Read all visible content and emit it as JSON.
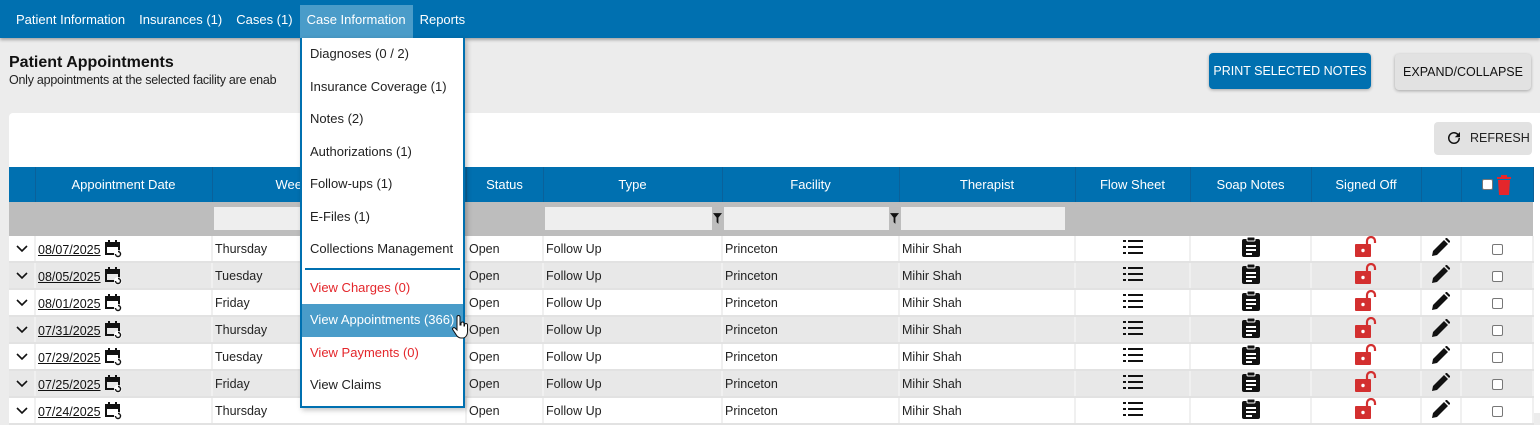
{
  "nav": {
    "items": [
      "Patient Information",
      "Insurances (1)",
      "Cases (1)",
      "Case Information",
      "Reports"
    ],
    "active": "Case Information"
  },
  "page": {
    "title": "Patient Appointments",
    "subtitle": "Only appointments at the selected facility are enab"
  },
  "buttons": {
    "print": "PRINT SELECTED NOTES",
    "expand": "EXPAND/COLLAPSE",
    "refresh": "REFRESH"
  },
  "menu": {
    "items": [
      {
        "label": "Diagnoses (0 / 2)"
      },
      {
        "label": "Insurance Coverage (1)"
      },
      {
        "label": "Notes (2)"
      },
      {
        "label": "Authorizations (1)"
      },
      {
        "label": "Follow-ups (1)"
      },
      {
        "label": "E-Files (1)"
      },
      {
        "label": "Collections Management"
      },
      {
        "label": "View Charges (0)",
        "color": "red"
      },
      {
        "label": "View Appointments (366)",
        "selected": true
      },
      {
        "label": "View Payments (0)",
        "color": "red"
      },
      {
        "label": "View Claims"
      }
    ]
  },
  "table": {
    "columns": [
      "",
      "Appointment Date",
      "Wee",
      "Status",
      "Type",
      "Facility",
      "Therapist",
      "Flow Sheet",
      "Soap Notes",
      "Signed Off",
      "",
      ""
    ],
    "rows": [
      {
        "date": "08/07/2025",
        "weekday": "Thursday",
        "status": "Open",
        "type": "Follow Up",
        "facility": "Princeton",
        "therapist": "Mihir Shah"
      },
      {
        "date": "08/05/2025",
        "weekday": "Tuesday",
        "status": "Open",
        "type": "Follow Up",
        "facility": "Princeton",
        "therapist": "Mihir Shah"
      },
      {
        "date": "08/01/2025",
        "weekday": "Friday",
        "status": "Open",
        "type": "Follow Up",
        "facility": "Princeton",
        "therapist": "Mihir Shah"
      },
      {
        "date": "07/31/2025",
        "weekday": "Thursday",
        "status": "Open",
        "type": "Follow Up",
        "facility": "Princeton",
        "therapist": "Mihir Shah"
      },
      {
        "date": "07/29/2025",
        "weekday": "Tuesday",
        "status": "Open",
        "type": "Follow Up",
        "facility": "Princeton",
        "therapist": "Mihir Shah"
      },
      {
        "date": "07/25/2025",
        "weekday": "Friday",
        "status": "Open",
        "type": "Follow Up",
        "facility": "Princeton",
        "therapist": "Mihir Shah"
      },
      {
        "date": "07/24/2025",
        "weekday": "Thursday",
        "status": "Open",
        "type": "Follow Up",
        "facility": "Princeton",
        "therapist": "Mihir Shah"
      }
    ]
  },
  "colors": {
    "primary": "#0070b0",
    "menu_highlight": "#4a9cc9",
    "danger": "#e4262b",
    "unlock": "#d32f2f"
  },
  "icons": {
    "expand": "chevron-down-icon",
    "reschedule": "calendar-refresh-icon",
    "flow": "list-icon",
    "soap": "clipboard-icon",
    "signed": "lock-open-icon",
    "edit": "pencil-icon",
    "delete": "trash-icon",
    "filter": "funnel-icon",
    "refresh": "refresh-icon"
  }
}
